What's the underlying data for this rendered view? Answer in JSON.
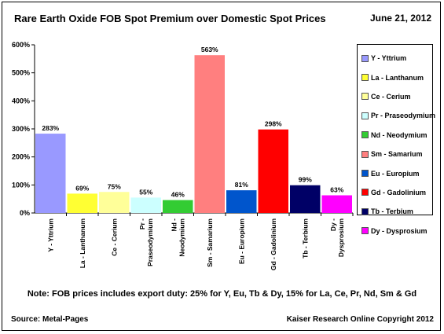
{
  "header": {
    "title": "Rare Earth Oxide FOB Spot Premium over Domestic Spot Prices",
    "date": "June 21, 2012"
  },
  "footer": {
    "note": "Note: FOB prices includes export duty: 25% for Y, Eu, Tb & Dy, 15% for La, Ce, Pr, Nd, Sm & Gd",
    "source": "Source: Metal-Pages",
    "copyright": "Kaiser Research Online Copyright 2012"
  },
  "chart_data": {
    "type": "bar",
    "title": "Rare Earth Oxide FOB Spot Premium over Domestic Spot Prices",
    "xlabel": "",
    "ylabel": "",
    "ylim": [
      0,
      600
    ],
    "yticks": [
      0,
      100,
      200,
      300,
      400,
      500,
      600
    ],
    "ytick_labels": [
      "0%",
      "100%",
      "200%",
      "300%",
      "400%",
      "500%",
      "600%"
    ],
    "grid": false,
    "legend_position": "right",
    "categories": [
      "Y - Yttrium",
      "La - Lanthanum",
      "Ce - Cerium",
      "Pr - Praseodymium",
      "Nd - Neodymium",
      "Sm - Samarium",
      "Eu - Europium",
      "Gd - Gadolinium",
      "Tb - Terbium",
      "Dy - Dysprosium"
    ],
    "tick_lines": [
      [
        "Y - Yttrium"
      ],
      [
        "La - Lanthanum"
      ],
      [
        "Ce - Cerium"
      ],
      [
        "Pr -",
        "Praseodymium"
      ],
      [
        "Nd -",
        "Neodymium"
      ],
      [
        "Sm - Samarium"
      ],
      [
        "Eu - Europium"
      ],
      [
        "Gd - Gadolinium"
      ],
      [
        "Tb - Terbium"
      ],
      [
        "Dy -",
        "Dysprosium"
      ]
    ],
    "values": [
      283,
      69,
      75,
      55,
      46,
      563,
      81,
      298,
      99,
      63
    ],
    "data_labels": [
      "283%",
      "69%",
      "75%",
      "55%",
      "46%",
      "563%",
      "81%",
      "298%",
      "99%",
      "63%"
    ],
    "colors": [
      "#9999ff",
      "#ffff33",
      "#ffff99",
      "#ccffff",
      "#33cc33",
      "#ff7f7f",
      "#0055cc",
      "#ff0000",
      "#000066",
      "#ff00ff"
    ]
  }
}
